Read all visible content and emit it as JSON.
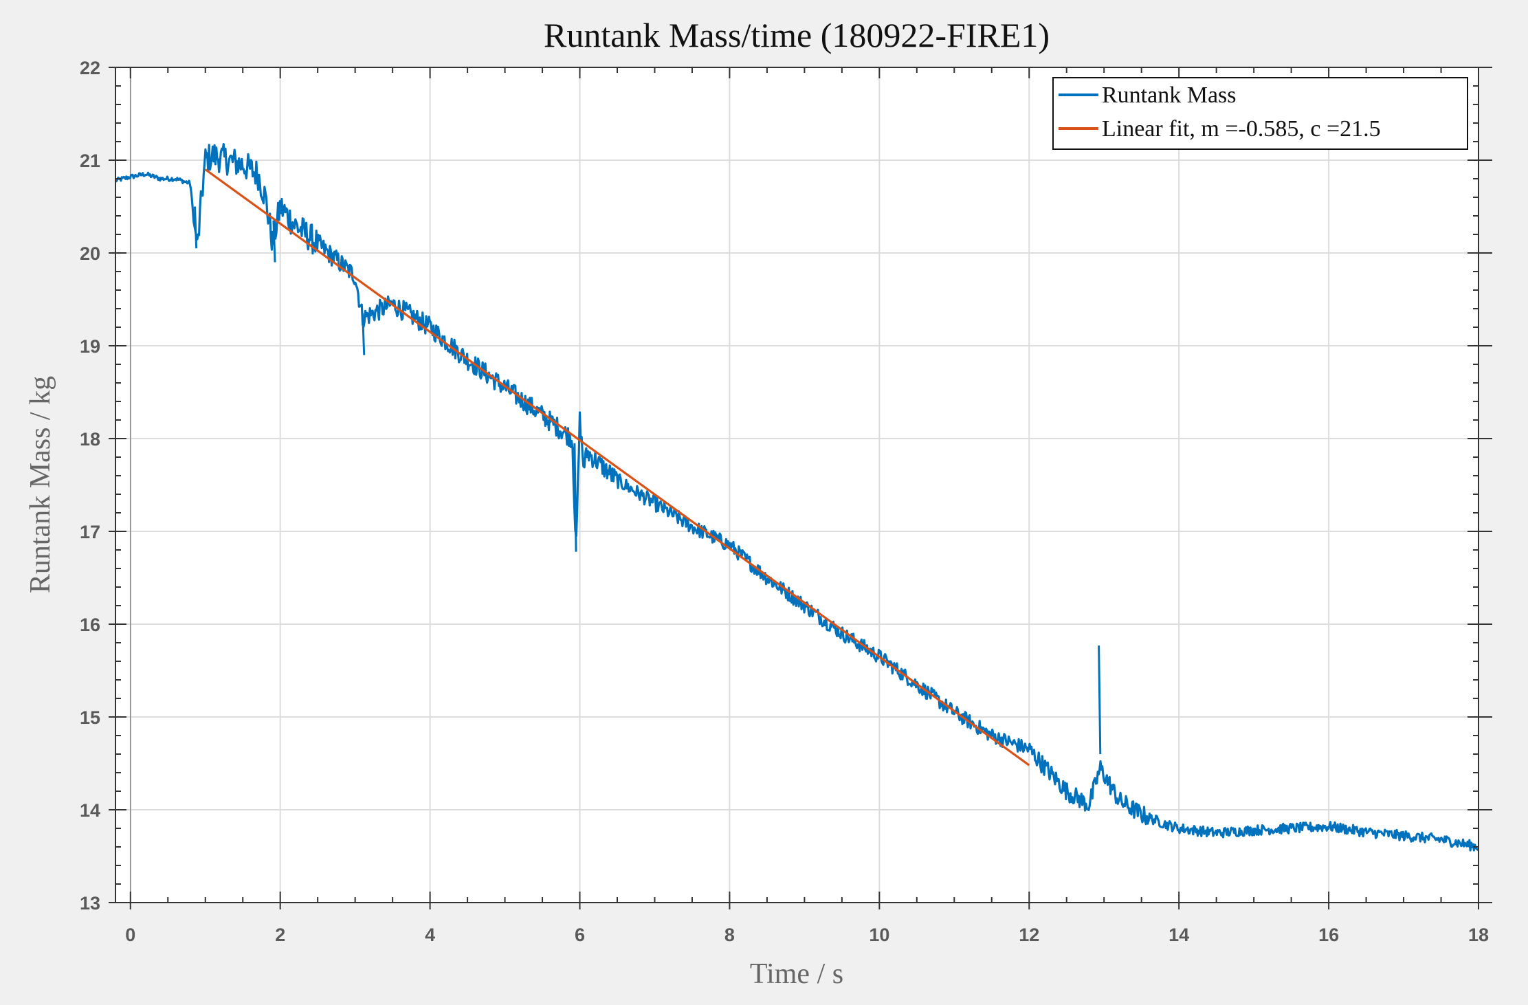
{
  "chart_data": {
    "type": "line",
    "title": "Runtank Mass/time (180922-FIRE1)",
    "xlabel": "Time / s",
    "ylabel": "Runtank Mass / kg",
    "xlim": [
      -0.2,
      18
    ],
    "ylim": [
      13,
      22
    ],
    "xticks": [
      0,
      2,
      4,
      6,
      8,
      10,
      12,
      14,
      16,
      18
    ],
    "yticks": [
      13,
      14,
      15,
      16,
      17,
      18,
      19,
      20,
      21,
      22
    ],
    "grid": true,
    "legend_position": "top-right",
    "series": [
      {
        "name": "Runtank Mass",
        "color": "#0072bd",
        "style": "noisy-line",
        "x": [
          -0.2,
          0.0,
          0.2,
          0.4,
          0.6,
          0.8,
          0.85,
          0.9,
          0.95,
          1.0,
          1.1,
          1.3,
          1.5,
          1.7,
          1.8,
          1.9,
          2.0,
          2.2,
          2.5,
          3.0,
          3.1,
          3.5,
          4.0,
          4.5,
          5.0,
          5.5,
          5.9,
          5.95,
          6.0,
          6.05,
          6.1,
          6.5,
          7.0,
          7.5,
          8.0,
          8.5,
          9.0,
          9.5,
          10.0,
          10.5,
          11.0,
          11.5,
          12.0,
          12.5,
          12.8,
          12.95,
          13.2,
          13.5,
          13.8,
          14.0,
          14.5,
          15.0,
          15.5,
          16.0,
          16.5,
          17.0,
          17.5,
          18.0
        ],
        "y": [
          20.78,
          20.82,
          20.85,
          20.8,
          20.8,
          20.75,
          20.3,
          20.1,
          20.6,
          21.0,
          21.05,
          21.0,
          20.95,
          20.85,
          20.6,
          20.1,
          20.5,
          20.3,
          20.1,
          19.75,
          19.3,
          19.45,
          19.2,
          18.85,
          18.55,
          18.25,
          18.0,
          16.8,
          18.2,
          17.7,
          17.85,
          17.55,
          17.3,
          17.05,
          16.85,
          16.5,
          16.2,
          15.9,
          15.65,
          15.35,
          15.05,
          14.8,
          14.65,
          14.2,
          14.05,
          14.45,
          14.1,
          13.95,
          13.85,
          13.8,
          13.75,
          13.78,
          13.8,
          13.82,
          13.76,
          13.72,
          13.68,
          13.6
        ]
      },
      {
        "name": "Linear fit, m =-0.585, c =21.5",
        "color": "#d95319",
        "style": "line",
        "x": [
          1.0,
          12.0
        ],
        "y": [
          20.9,
          14.48
        ]
      }
    ]
  }
}
